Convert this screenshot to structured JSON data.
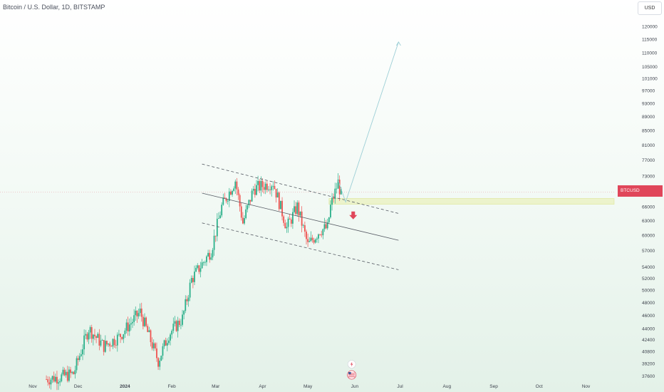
{
  "header": {
    "title": "Bitcoin / U.S. Dollar, 1D, BITSTAMP",
    "currency": "USD"
  },
  "price_label": "BTCUSD",
  "colors": {
    "up": "#2bb08a",
    "down": "#ef5350",
    "channel": "#555a63",
    "projection": "#9ccfd6",
    "zone": "#e8eeaa",
    "arrow": "#e0465a",
    "price_line": "#e0465a"
  },
  "icons": {
    "event_1": "lightning-icon",
    "event_2": "us-flag-icon"
  },
  "chart_data": {
    "type": "candlestick",
    "title": "Bitcoin / U.S. Dollar, 1D, BITSTAMP",
    "y_scale": "log",
    "ylim": [
      36500,
      125000
    ],
    "y_ticks": [
      120000,
      115000,
      110000,
      105000,
      101000,
      97000,
      93000,
      89000,
      85000,
      81000,
      77000,
      73000,
      66000,
      63000,
      60000,
      57000,
      54000,
      52000,
      50000,
      48000,
      46000,
      44000,
      42400,
      40800,
      39200,
      37600
    ],
    "y_tick_labels": [
      "120000",
      "115000",
      "110000",
      "105000",
      "101000",
      "97000",
      "93000",
      "89000",
      "85000",
      "81000",
      "77000",
      "73000",
      "66000",
      "63000",
      "60000",
      "57000",
      "54000",
      "52000",
      "50000",
      "48000",
      "46000",
      "44000",
      "42400",
      "40800",
      "39200",
      "37600"
    ],
    "x_range": [
      "2023-11-01",
      "2024-11-30"
    ],
    "x_ticks": [
      {
        "date": "2023-11-01",
        "label": "Nov"
      },
      {
        "date": "2023-12-01",
        "label": "Dec"
      },
      {
        "date": "2024-01-01",
        "label": "2024"
      },
      {
        "date": "2024-02-01",
        "label": "Feb"
      },
      {
        "date": "2024-03-01",
        "label": "Mar"
      },
      {
        "date": "2024-04-01",
        "label": "Apr"
      },
      {
        "date": "2024-05-01",
        "label": "May"
      },
      {
        "date": "2024-06-01",
        "label": "Jun"
      },
      {
        "date": "2024-07-01",
        "label": "Jul"
      },
      {
        "date": "2024-08-01",
        "label": "Aug"
      },
      {
        "date": "2024-09-01",
        "label": "Sep"
      },
      {
        "date": "2024-10-01",
        "label": "Oct"
      },
      {
        "date": "2024-11-01",
        "label": "Nov"
      }
    ],
    "anchors": [
      [
        "2023-11-10",
        37200
      ],
      [
        "2023-11-20",
        37500
      ],
      [
        "2023-11-28",
        37900
      ],
      [
        "2023-12-04",
        41500
      ],
      [
        "2023-12-08",
        44000
      ],
      [
        "2023-12-18",
        41500
      ],
      [
        "2023-12-28",
        42800
      ],
      [
        "2024-01-11",
        46500
      ],
      [
        "2024-01-23",
        39500
      ],
      [
        "2024-01-30",
        43200
      ],
      [
        "2024-02-08",
        45500
      ],
      [
        "2024-02-14",
        51800
      ],
      [
        "2024-02-27",
        57000
      ],
      [
        "2024-03-05",
        66000
      ],
      [
        "2024-03-14",
        72000
      ],
      [
        "2024-03-19",
        62500
      ],
      [
        "2024-03-26",
        70000
      ],
      [
        "2024-04-08",
        71500
      ],
      [
        "2024-04-17",
        61500
      ],
      [
        "2024-04-24",
        66000
      ],
      [
        "2024-05-01",
        58000
      ],
      [
        "2024-05-09",
        61000
      ],
      [
        "2024-05-14",
        61500
      ],
      [
        "2024-05-16",
        66000
      ],
      [
        "2024-05-21",
        71500
      ],
      [
        "2024-05-23",
        68500
      ]
    ],
    "channel_lines": [
      {
        "name": "upper",
        "style": "dashed",
        "start": [
          "2024-02-21",
          76000
        ],
        "end": [
          "2024-06-30",
          64500
        ]
      },
      {
        "name": "middle",
        "style": "solid",
        "start": [
          "2024-02-21",
          69000
        ],
        "end": [
          "2024-06-30",
          59000
        ]
      },
      {
        "name": "lower",
        "style": "dashed",
        "start": [
          "2024-02-21",
          62500
        ],
        "end": [
          "2024-06-30",
          53500
        ]
      }
    ],
    "projection": [
      [
        "2024-05-21",
        72000
      ],
      [
        "2024-05-26",
        67000
      ],
      [
        "2024-06-30",
        114000
      ]
    ],
    "support_zone": [
      66500,
      67800
    ],
    "current_price": 69200,
    "sell_arrow": [
      "2024-05-31",
      64000
    ]
  }
}
